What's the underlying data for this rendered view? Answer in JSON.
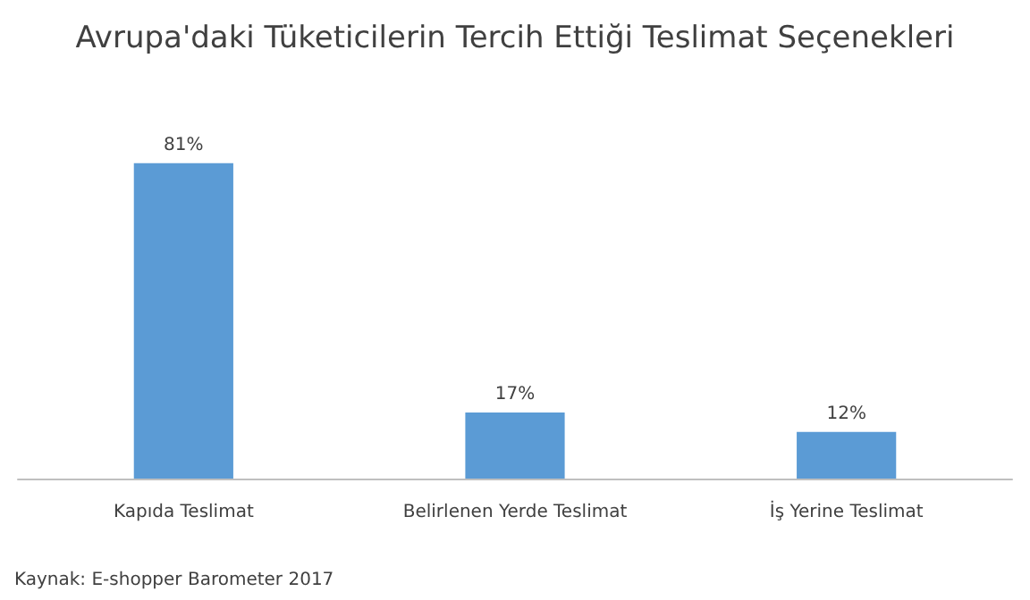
{
  "chart_data": {
    "type": "bar",
    "title": "Avrupa'daki Tüketicilerin Tercih Ettiği Teslimat Seçenekleri",
    "categories": [
      "Kapıda Teslimat",
      "Belirlenen Yerde Teslimat",
      "İş Yerine Teslimat"
    ],
    "values": [
      81,
      17,
      12
    ],
    "value_labels": [
      "81%",
      "17%",
      "12%"
    ],
    "color": "#5b9bd5",
    "annotations": [
      "Kaynak: E-shopper Barometer 2017"
    ]
  }
}
